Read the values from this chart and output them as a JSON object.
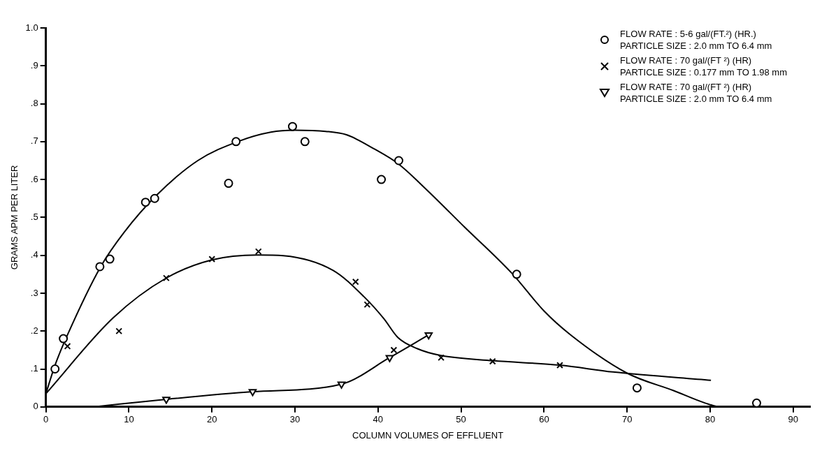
{
  "chart_data": {
    "type": "scatter",
    "xlabel": "COLUMN VOLUMES OF EFFLUENT",
    "ylabel": "GRAMS APM PER LITER",
    "xlim": [
      0,
      92
    ],
    "ylim": [
      0,
      1
    ],
    "xticks": [
      0,
      10,
      20,
      30,
      40,
      50,
      60,
      70,
      80,
      90
    ],
    "yticks": [
      0,
      {
        "value": 0.1,
        "label": ".1"
      },
      {
        "value": 0.2,
        "label": ".2"
      },
      {
        "value": 0.3,
        "label": ".3"
      },
      {
        "value": 0.4,
        "label": ".4"
      },
      {
        "value": 0.5,
        "label": ".5"
      },
      {
        "value": 0.6,
        "label": ".6"
      },
      {
        "value": 0.7,
        "label": ".7"
      },
      {
        "value": 0.8,
        "label": ".8"
      },
      {
        "value": 0.9,
        "label": ".9"
      },
      {
        "value": 1,
        "label": "1.0"
      }
    ],
    "grid": false,
    "legend": "top right",
    "series": [
      {
        "name": "FLOW RATE : 5-6 gal/(FT.²) (HR.)\nPARTICLE SIZE : 2.0 mm TO 6.4 mm",
        "color": "#000000",
        "marker": "circle",
        "x": [
          1.1,
          2.1,
          6.5,
          7.7,
          12.0,
          13.1,
          22.0,
          22.9,
          29.7,
          31.2,
          40.4,
          42.5,
          56.7,
          71.2,
          85.6
        ],
        "values": [
          0.1,
          0.18,
          0.37,
          0.39,
          0.54,
          0.55,
          0.59,
          0.7,
          0.74,
          0.7,
          0.6,
          0.65,
          0.35,
          0.05,
          0.01
        ]
      },
      {
        "name": "FLOW RATE : 70 gal/(FT ²) (HR)\nPARTICLE SIZE : 0.177 mm TO 1.98 mm",
        "color": "#000000",
        "marker": "cross",
        "x": [
          2.6,
          8.8,
          14.5,
          20.0,
          25.6,
          37.3,
          38.7,
          41.9,
          47.6,
          53.8,
          61.9
        ],
        "values": [
          0.16,
          0.2,
          0.34,
          0.39,
          0.41,
          0.33,
          0.27,
          0.15,
          0.13,
          0.12,
          0.11
        ]
      },
      {
        "name": "FLOW RATE : 70 gal/(FT ²) (HR)\nPARTICLE SIZE : 2.0 mm TO 6.4 mm",
        "color": "#000000",
        "marker": "triangle",
        "x": [
          14.5,
          24.9,
          35.6,
          41.4,
          46.1
        ],
        "values": [
          0.02,
          0.04,
          0.06,
          0.13,
          0.19
        ]
      },
      {
        "type": "line",
        "color": "#000000",
        "marker": "none",
        "x": [
          0,
          1.1,
          2.6,
          6.6,
          9.4,
          13.4,
          18.3,
          23.1,
          27.1,
          30,
          33.7,
          36.2,
          39.6,
          42.4,
          46,
          50.4,
          56.1,
          60,
          63.2,
          70,
          75.6,
          79.3,
          81.3,
          92
        ],
        "values": [
          0.035,
          0.11,
          0.19,
          0.37,
          0.46,
          0.56,
          0.65,
          0.7,
          0.725,
          0.73,
          0.727,
          0.718,
          0.68,
          0.642,
          0.57,
          0.475,
          0.353,
          0.253,
          0.19,
          0.089,
          0.043,
          0.011,
          0,
          0
        ]
      },
      {
        "type": "line",
        "color": "#000000",
        "marker": "none",
        "x": [
          0,
          8.1,
          14.5,
          20,
          25.5,
          28.6,
          34.6,
          38.3,
          40.7,
          42.4,
          44.7,
          47.5,
          53.8,
          61.9,
          68.3,
          80.1
        ],
        "values": [
          0.035,
          0.235,
          0.34,
          0.388,
          0.401,
          0.399,
          0.36,
          0.291,
          0.233,
          0.183,
          0.154,
          0.136,
          0.122,
          0.11,
          0.092,
          0.07
        ]
      },
      {
        "type": "line",
        "color": "#000000",
        "marker": "none",
        "x": [
          5.8,
          14.5,
          24.9,
          35.6,
          41.4,
          46.1
        ],
        "values": [
          0,
          0.02,
          0.04,
          0.06,
          0.13,
          0.19
        ]
      }
    ]
  }
}
